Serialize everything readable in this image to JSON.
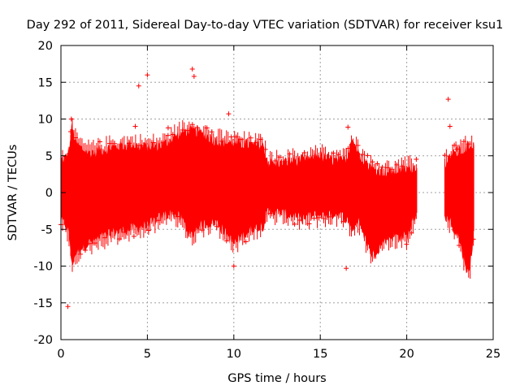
{
  "chart_data": {
    "type": "scatter",
    "title": "Day 292 of 2011, Sidereal Day-to-day VTEC variation (SDTVAR) for receiver ksu1",
    "xlabel": "GPS time / hours",
    "ylabel": "SDTVAR / TECUs",
    "xlim": [
      0,
      25
    ],
    "ylim": [
      -20,
      20
    ],
    "x_ticks": [
      0,
      5,
      10,
      15,
      20,
      25
    ],
    "y_ticks": [
      -20,
      -15,
      -10,
      -5,
      0,
      5,
      10,
      15,
      20
    ],
    "grid": true,
    "marker": "+",
    "series_color": "#ff0000",
    "envelope": {
      "x": [
        0.0,
        0.3,
        0.5,
        0.6,
        0.9,
        1.5,
        2.0,
        3.0,
        4.0,
        5.0,
        6.0,
        6.5,
        7.0,
        7.5,
        8.0,
        9.0,
        10.0,
        11.0,
        11.7,
        12.0,
        13.0,
        14.0,
        15.0,
        16.0,
        16.5,
        16.8,
        17.2,
        18.0,
        19.0,
        20.0,
        20.6
      ],
      "upper": [
        4.5,
        4.8,
        6.0,
        9.0,
        6.5,
        5.5,
        5.6,
        6.2,
        6.5,
        6.2,
        6.6,
        7.5,
        8.2,
        8.5,
        8.3,
        7.0,
        6.8,
        6.5,
        6.3,
        4.0,
        4.2,
        4.5,
        5.0,
        4.2,
        4.5,
        7.5,
        5.5,
        3.2,
        2.8,
        3.2,
        3.6
      ],
      "lower": [
        -4.0,
        -4.5,
        -6.0,
        -10.0,
        -8.0,
        -7.0,
        -6.5,
        -5.5,
        -5.0,
        -4.5,
        -3.0,
        -3.0,
        -3.5,
        -6.0,
        -4.5,
        -4.0,
        -7.0,
        -5.0,
        -4.5,
        -2.5,
        -3.0,
        -3.5,
        -3.0,
        -3.0,
        -3.5,
        -5.0,
        -4.0,
        -8.5,
        -6.0,
        -6.0,
        -2.5
      ]
    },
    "envelope_2": {
      "x": [
        22.2,
        22.5,
        23.0,
        23.3,
        23.6,
        23.9
      ],
      "upper": [
        4.0,
        5.0,
        5.5,
        5.8,
        6.5,
        6.5
      ],
      "lower": [
        -3.0,
        -4.0,
        -6.0,
        -9.0,
        -11.5,
        -5.0
      ]
    },
    "outliers": {
      "x": [
        0.4,
        0.6,
        4.3,
        4.5,
        5.0,
        6.2,
        7.6,
        7.7,
        9.7,
        10.0,
        16.5,
        16.6,
        22.4,
        22.5,
        22.9
      ],
      "y": [
        -15.5,
        10.0,
        9.0,
        14.5,
        16.0,
        8.8,
        16.8,
        15.8,
        10.7,
        -10.0,
        -10.3,
        8.9,
        12.7,
        9.0,
        5.9
      ]
    }
  }
}
